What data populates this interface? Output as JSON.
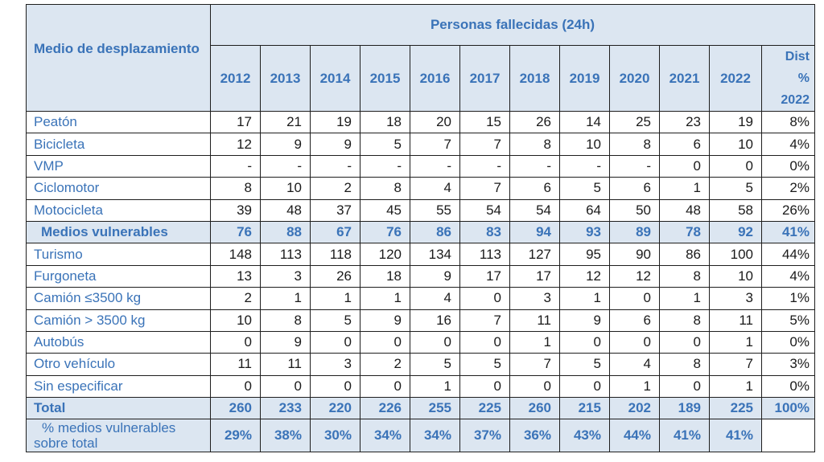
{
  "table": {
    "corner_label": "Medio de desplazamiento",
    "group_label": "Personas fallecidas  (24h)",
    "year_headers": [
      "2012",
      "2013",
      "2014",
      "2015",
      "2016",
      "2017",
      "2018",
      "2019",
      "2020",
      "2021",
      "2022"
    ],
    "dist_header": [
      "Dist",
      "%",
      "2022"
    ],
    "rows": [
      {
        "label": "Peatón",
        "values": [
          "17",
          "21",
          "19",
          "18",
          "20",
          "15",
          "26",
          "14",
          "25",
          "23",
          "19"
        ],
        "dist": "8%"
      },
      {
        "label": "Bicicleta",
        "values": [
          "12",
          "9",
          "9",
          "5",
          "7",
          "7",
          "8",
          "10",
          "8",
          "6",
          "10"
        ],
        "dist": "4%"
      },
      {
        "label": "VMP",
        "values": [
          "-",
          "-",
          "-",
          "-",
          "-",
          "-",
          "-",
          "-",
          "-",
          "0",
          "0"
        ],
        "dist": "0%"
      },
      {
        "label": "Ciclomotor",
        "values": [
          "8",
          "10",
          "2",
          "8",
          "4",
          "7",
          "6",
          "5",
          "6",
          "1",
          "5"
        ],
        "dist": "2%"
      },
      {
        "label": "Motocicleta",
        "values": [
          "39",
          "48",
          "37",
          "45",
          "55",
          "54",
          "54",
          "64",
          "50",
          "48",
          "58"
        ],
        "dist": "26%"
      },
      {
        "label": "Medios vulnerables",
        "values": [
          "76",
          "88",
          "67",
          "76",
          "86",
          "83",
          "94",
          "93",
          "89",
          "78",
          "92"
        ],
        "dist": "41%",
        "highlight": true
      },
      {
        "label": "Turismo",
        "values": [
          "148",
          "113",
          "118",
          "120",
          "134",
          "113",
          "127",
          "95",
          "90",
          "86",
          "100"
        ],
        "dist": "44%"
      },
      {
        "label": "Furgoneta",
        "values": [
          "13",
          "3",
          "26",
          "18",
          "9",
          "17",
          "17",
          "12",
          "12",
          "8",
          "10"
        ],
        "dist": "4%"
      },
      {
        "label": "Camión ≤3500 kg",
        "values": [
          "2",
          "1",
          "1",
          "1",
          "4",
          "0",
          "3",
          "1",
          "0",
          "1",
          "3"
        ],
        "dist": "1%"
      },
      {
        "label": "Camión > 3500 kg",
        "values": [
          "10",
          "8",
          "5",
          "9",
          "16",
          "7",
          "11",
          "9",
          "6",
          "8",
          "11"
        ],
        "dist": "5%"
      },
      {
        "label": "Autobús",
        "values": [
          "0",
          "9",
          "0",
          "0",
          "0",
          "0",
          "1",
          "0",
          "0",
          "0",
          "1"
        ],
        "dist": "0%"
      },
      {
        "label": "Otro vehículo",
        "values": [
          "11",
          "11",
          "3",
          "2",
          "5",
          "5",
          "7",
          "5",
          "4",
          "8",
          "7"
        ],
        "dist": "3%"
      },
      {
        "label": "Sin especificar",
        "values": [
          "0",
          "0",
          "0",
          "0",
          "1",
          "0",
          "0",
          "0",
          "1",
          "0",
          "1"
        ],
        "dist": "0%"
      }
    ],
    "total": {
      "label": "Total",
      "values": [
        "260",
        "233",
        "220",
        "226",
        "255",
        "225",
        "260",
        "215",
        "202",
        "189",
        "225"
      ],
      "dist": "100%"
    },
    "share": {
      "label_lines": [
        "% medios vulnerables",
        "sobre total"
      ],
      "values": [
        "29%",
        "38%",
        "30%",
        "34%",
        "34%",
        "37%",
        "36%",
        "43%",
        "44%",
        "41%",
        "41%"
      ]
    }
  }
}
